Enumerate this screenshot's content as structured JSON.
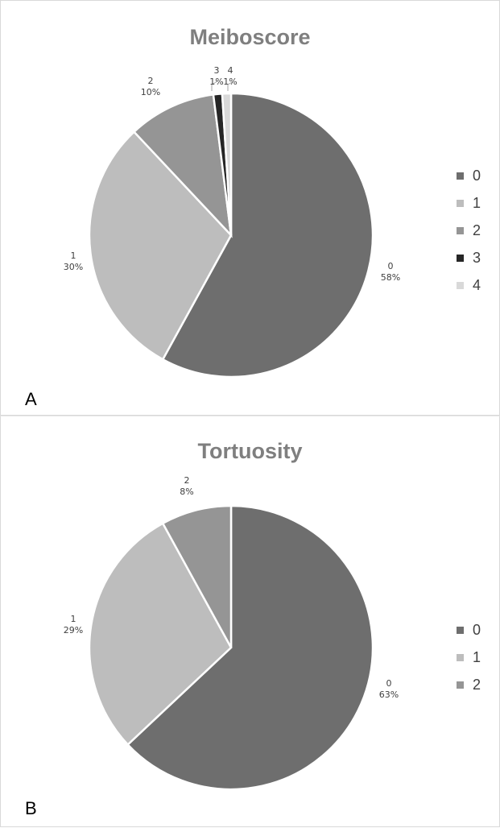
{
  "chart_data": [
    {
      "type": "pie",
      "title": "Meiboscore",
      "panel_letter": "A",
      "categories": [
        "0",
        "1",
        "2",
        "3",
        "4"
      ],
      "values": [
        58,
        30,
        10,
        1,
        1
      ],
      "value_labels": [
        "58%",
        "30%",
        "10%",
        "1%",
        "1%"
      ],
      "colors": [
        "#6e6e6e",
        "#bdbdbd",
        "#959595",
        "#262626",
        "#d9d9d9"
      ],
      "legend": "right"
    },
    {
      "type": "pie",
      "title": "Tortuosity",
      "panel_letter": "B",
      "categories": [
        "0",
        "1",
        "2"
      ],
      "values": [
        63,
        29,
        8
      ],
      "value_labels": [
        "63%",
        "29%",
        "8%"
      ],
      "colors": [
        "#6e6e6e",
        "#bdbdbd",
        "#959595"
      ],
      "legend": "right"
    }
  ]
}
